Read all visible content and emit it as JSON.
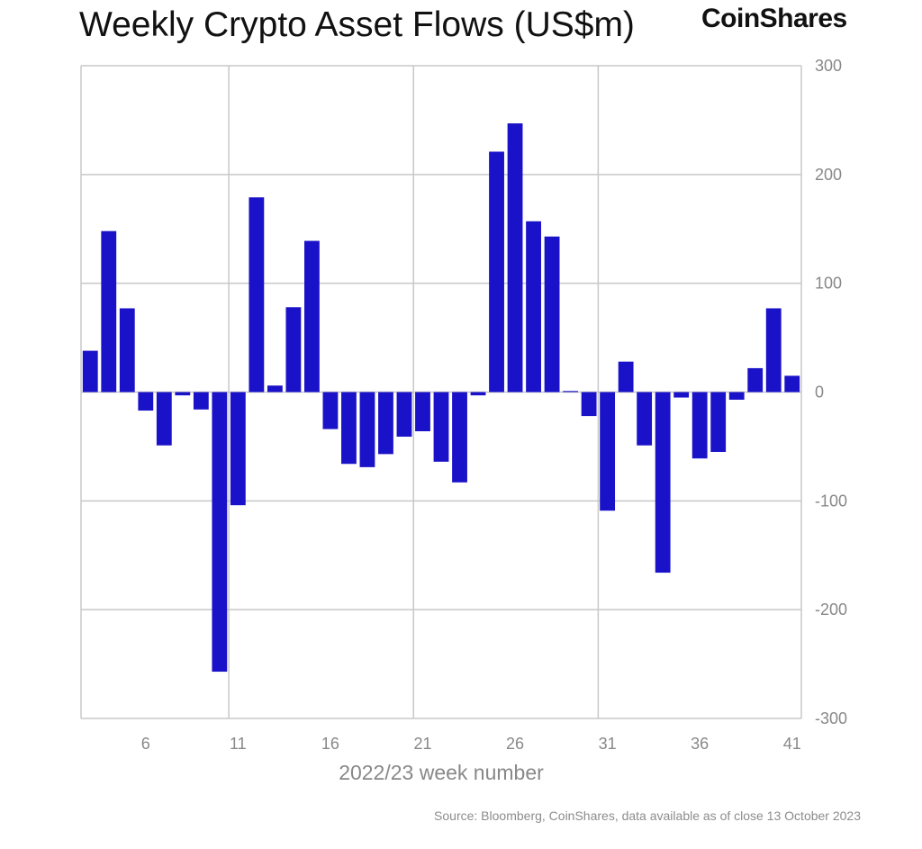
{
  "header": {
    "title": "Weekly Crypto Asset Flows (US$m)",
    "logo": "CoinShares"
  },
  "footer": {
    "source": "Source: Bloomberg, CoinShares, data available as of close 13 October 2023"
  },
  "colors": {
    "bar": "#1a12c8",
    "grid": "#c8c8c8",
    "tick_text": "#888888"
  },
  "chart_data": {
    "type": "bar",
    "title": "Weekly Crypto Asset Flows (US$m)",
    "xlabel": "2022/23 week number",
    "ylabel": "",
    "ylim": [
      -300,
      300
    ],
    "yticks": [
      300,
      200,
      100,
      0,
      -100,
      -200,
      -300
    ],
    "xticks": [
      6,
      11,
      16,
      21,
      26,
      31,
      36,
      41
    ],
    "grid": "on",
    "y_axis_side": "right",
    "categories": [
      3,
      4,
      5,
      6,
      7,
      8,
      9,
      10,
      11,
      12,
      13,
      14,
      15,
      16,
      17,
      18,
      19,
      20,
      21,
      22,
      23,
      24,
      25,
      26,
      27,
      28,
      29,
      30,
      31,
      32,
      33,
      34,
      35,
      36,
      37,
      38,
      39,
      40,
      41
    ],
    "values": [
      38,
      148,
      77,
      -17,
      -49,
      -3,
      -16,
      -257,
      -104,
      179,
      6,
      78,
      139,
      -34,
      -66,
      -69,
      -57,
      -41,
      -36,
      -64,
      -83,
      -3,
      221,
      247,
      157,
      143,
      1,
      -22,
      -109,
      28,
      -49,
      -166,
      -5,
      -61,
      -55,
      -7,
      22,
      77,
      15
    ]
  }
}
